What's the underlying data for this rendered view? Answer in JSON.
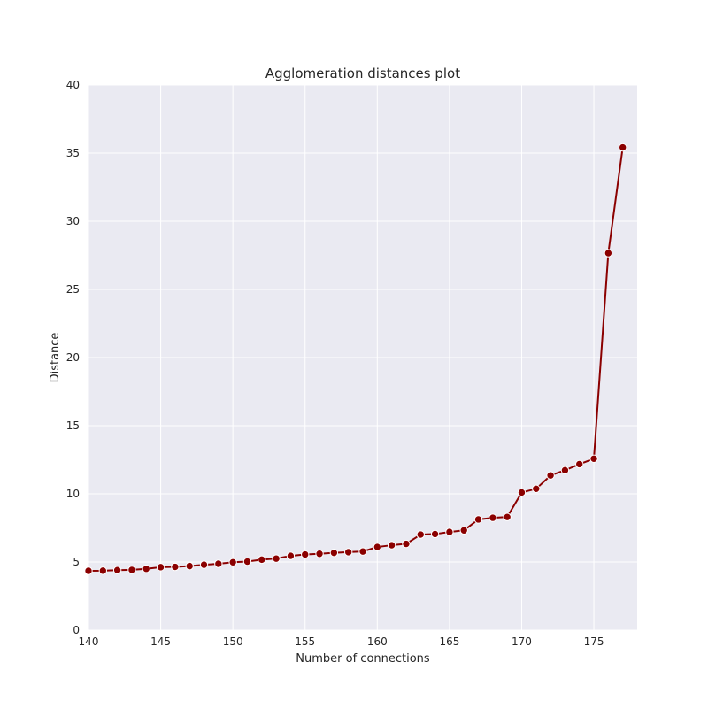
{
  "chart_data": {
    "type": "line",
    "title": "Agglomeration distances plot",
    "xlabel": "Number of connections",
    "ylabel": "Distance",
    "xlim": [
      140,
      178
    ],
    "ylim": [
      0,
      40
    ],
    "x_ticks": [
      140,
      145,
      150,
      155,
      160,
      165,
      170,
      175
    ],
    "y_ticks": [
      0,
      5,
      10,
      15,
      20,
      25,
      30,
      35,
      40
    ],
    "grid": true,
    "colors": {
      "plot_background": "#eaeaf2",
      "grid": "#ffffff",
      "series": "#8b0000"
    },
    "series": [
      {
        "x": [
          140,
          141,
          142,
          143,
          144,
          145,
          146,
          147,
          148,
          149,
          150,
          151,
          152,
          153,
          154,
          155,
          156,
          157,
          158,
          159,
          160,
          161,
          162,
          163,
          164,
          165,
          166,
          167,
          168,
          169,
          170,
          171,
          172,
          173,
          174,
          175,
          176,
          177
        ],
        "values": [
          4.35,
          4.36,
          4.4,
          4.42,
          4.5,
          4.62,
          4.64,
          4.7,
          4.8,
          4.87,
          4.98,
          5.03,
          5.17,
          5.25,
          5.45,
          5.55,
          5.6,
          5.67,
          5.72,
          5.77,
          6.1,
          6.23,
          6.33,
          7.01,
          7.05,
          7.2,
          7.32,
          8.12,
          8.24,
          8.3,
          10.1,
          10.37,
          11.35,
          11.73,
          12.18,
          12.58,
          27.66,
          35.42
        ]
      }
    ]
  }
}
